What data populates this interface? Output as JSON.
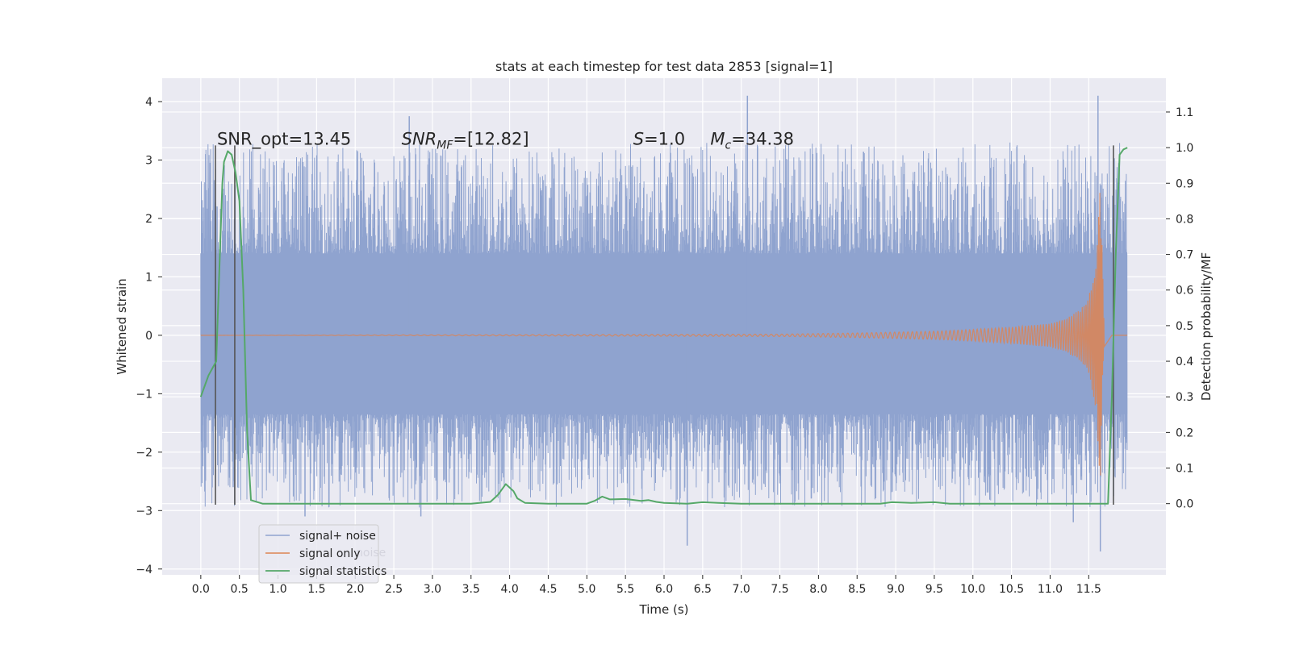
{
  "chart_data": {
    "type": "line",
    "title": "stats at each timestep for test data 2853 [signal=1]",
    "xlabel": "Time (s)",
    "ylabel": "Whitened strain",
    "y2label": "Detection probability/MF",
    "xlim": [
      -0.5,
      12.5
    ],
    "ylim": [
      -4.1,
      4.4
    ],
    "y2lim": [
      -0.2,
      1.195
    ],
    "xticks": [
      0.0,
      0.5,
      1.0,
      1.5,
      2.0,
      2.5,
      3.0,
      3.5,
      4.0,
      4.5,
      5.0,
      5.5,
      6.0,
      6.5,
      7.0,
      7.5,
      8.0,
      8.5,
      9.0,
      9.5,
      10.0,
      10.5,
      11.0,
      11.5
    ],
    "xtick_labels": [
      "0.0",
      "0.5",
      "1.0",
      "1.5",
      "2.0",
      "2.5",
      "3.0",
      "3.5",
      "4.0",
      "4.5",
      "5.0",
      "5.5",
      "6.0",
      "6.5",
      "7.0",
      "7.5",
      "8.0",
      "8.5",
      "9.0",
      "9.5",
      "10.0",
      "10.5",
      "11.0",
      "11.5"
    ],
    "yticks": [
      4,
      3,
      2,
      1,
      0,
      -1,
      -2,
      -3,
      -4
    ],
    "ytick_labels": [
      "4",
      "3",
      "2",
      "1",
      "0",
      "−1",
      "−2",
      "−3",
      "−4"
    ],
    "y2ticks": [
      1.1,
      1.0,
      0.9,
      0.8,
      0.7,
      0.6,
      0.5,
      0.4,
      0.3,
      0.2,
      0.1,
      0.0
    ],
    "y2tick_labels": [
      "1.1",
      "1.0",
      "0.9",
      "0.8",
      "0.7",
      "0.6",
      "0.5",
      "0.4",
      "0.3",
      "0.2",
      "0.1",
      "0.0"
    ],
    "grid": true,
    "legend_position": "lower-left",
    "colors": {
      "background": "#eaeaf2",
      "grid": "#ffffff",
      "noise": "#8fa3cf",
      "signal": "#dd8452",
      "stats": "#55a868",
      "vlines": "#555555"
    },
    "series": [
      {
        "name": "signal+ noise",
        "noise_band": [
          -1.35,
          1.4
        ],
        "x_range": [
          0.0,
          12.0
        ],
        "notable_peaks": [
          [
            2.7,
            3.75
          ],
          [
            7.08,
            4.1
          ],
          [
            11.62,
            4.1
          ],
          [
            0.42,
            -2.6
          ],
          [
            6.3,
            -3.6
          ],
          [
            11.65,
            -3.7
          ],
          [
            11.3,
            -3.2
          ],
          [
            1.35,
            -3.1
          ],
          [
            2.85,
            -3.1
          ]
        ]
      },
      {
        "name": "signal only",
        "x": [
          0.0,
          7.5,
          8.5,
          9.5,
          10.0,
          10.5,
          11.0,
          11.2,
          11.4,
          11.5,
          11.6,
          11.65,
          11.7,
          11.8,
          12.0
        ],
        "envelope": [
          0.0,
          0.02,
          0.04,
          0.07,
          0.1,
          0.14,
          0.2,
          0.28,
          0.45,
          0.65,
          1.3,
          2.6,
          0.2,
          0.0,
          0.0
        ]
      },
      {
        "name": "signal statistics",
        "x": [
          0.0,
          0.1,
          0.15,
          0.2,
          0.25,
          0.28,
          0.3,
          0.35,
          0.4,
          0.45,
          0.5,
          0.55,
          0.6,
          0.65,
          0.8,
          1.0,
          2.0,
          2.5,
          3.0,
          3.5,
          3.75,
          3.85,
          3.95,
          4.05,
          4.1,
          4.2,
          4.5,
          5.0,
          5.1,
          5.2,
          5.3,
          5.5,
          5.7,
          5.8,
          5.9,
          6.0,
          6.3,
          6.5,
          6.7,
          7.0,
          8.0,
          8.8,
          8.95,
          9.2,
          9.5,
          9.7,
          10.5,
          11.0,
          11.5,
          11.7,
          11.75,
          11.8,
          11.85,
          11.9,
          11.95,
          12.0
        ],
        "values": [
          0.3,
          0.36,
          0.38,
          0.4,
          0.72,
          0.9,
          0.96,
          0.99,
          0.98,
          0.93,
          0.85,
          0.6,
          0.2,
          0.01,
          0.0,
          0.0,
          0.0,
          0.0,
          0.0,
          0.0,
          0.005,
          0.025,
          0.055,
          0.035,
          0.015,
          0.002,
          0.0,
          0.0,
          0.008,
          0.02,
          0.012,
          0.013,
          0.008,
          0.01,
          0.005,
          0.002,
          0.0,
          0.004,
          0.002,
          0.0,
          0.0,
          0.0,
          0.004,
          0.002,
          0.004,
          0.0,
          0.0,
          0.0,
          0.0,
          0.0,
          0.0,
          0.3,
          0.7,
          0.98,
          0.995,
          1.0
        ]
      }
    ],
    "vertical_lines_x": [
      0.19,
      0.44,
      11.82
    ],
    "vertical_lines_y": [
      -2.9,
      3.25
    ],
    "annotations": [
      {
        "text": "SNR_opt=13.45",
        "x": 0.21,
        "y": 3.25
      },
      {
        "text": "SNR_MF=[12.82]",
        "x": 2.6,
        "y": 3.25
      },
      {
        "text": "S=1.0",
        "x": 5.6,
        "y": 3.25
      },
      {
        "text": "M_c=34.38",
        "x": 6.6,
        "y": 3.25
      }
    ],
    "legend_ghost_text": "noise"
  }
}
